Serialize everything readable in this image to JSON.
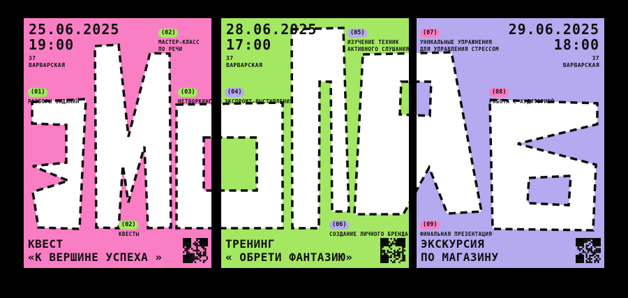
{
  "poster_word": "ЭМОЛАБ",
  "colors": {
    "background": "#000000",
    "pink": "#F97EC4",
    "green": "#A4E763",
    "lavender": "#B5AAEF",
    "letter_fill": "#FFFFFF",
    "ink": "#101010"
  },
  "panels": [
    {
      "letters": "ЭМ",
      "date": "25.06.2025",
      "time": "19:00",
      "address_line1": "37",
      "address_line2": "ВАРВАРСКАЯ",
      "tags": [
        {
          "num": "(01)",
          "lines": [
            "РАЗБОРЫ ЗАДАНИЙ"
          ]
        },
        {
          "num": "(02)",
          "lines": [
            "МАСТЕР-КЛАСС",
            "ПО РЕЧИ"
          ]
        },
        {
          "num": "(03)",
          "lines": [
            "НЕТВОРКИНГ"
          ]
        },
        {
          "num": "(02)",
          "lines": [
            "КВЕСТЫ"
          ]
        }
      ],
      "title_line1": "КВЕСТ",
      "title_line2": "«К ВЕРШИНЕ УСПЕХА »"
    },
    {
      "letters": "ОЛ",
      "date": "28.06.2025",
      "time": "17:00",
      "address_line1": "37",
      "address_line2": "ВАРВАРСКАЯ",
      "tags": [
        {
          "num": "(04)",
          "lines": [
            "ЭКСПРОМТ-ВЫСТУПЛЕНИЯ"
          ]
        },
        {
          "num": "(05)",
          "lines": [
            "ИЗУЧЕНИЕ ТЕХНИК",
            "АКТИВНОГО СЛУШАНИЯ"
          ]
        },
        {
          "num": "(06)",
          "lines": [
            "СОЗДАНИЕ ЛИЧНОГО БРЕНДА"
          ]
        }
      ],
      "title_line1": "ТРЕНИНГ",
      "title_line2": "« ОБРЕТИ ФАНТАЗИЮ»"
    },
    {
      "letters": "АБ",
      "date": "29.06.2025",
      "time": "18:00",
      "address_line1": "37",
      "address_line2": "ВАРВАРСКАЯ",
      "tags": [
        {
          "num": "(07)",
          "lines": [
            "УНИКАЛЬНЫЕ УПРАЖНЕНИЯ",
            "ДЛЯ УПРАВЛЕНИЯ СТРЕССОМ"
          ]
        },
        {
          "num": "(08)",
          "lines": [
            "РАБОТА С АУДИТОРИЕЙ"
          ]
        },
        {
          "num": "(09)",
          "lines": [
            "ФИНАЛЬНАЯ ПРЕЗЕНТАЦИЯ"
          ]
        }
      ],
      "title_line1": "ЭКСКУРСИЯ",
      "title_line2": "ПО МАГАЗИНУ"
    }
  ]
}
